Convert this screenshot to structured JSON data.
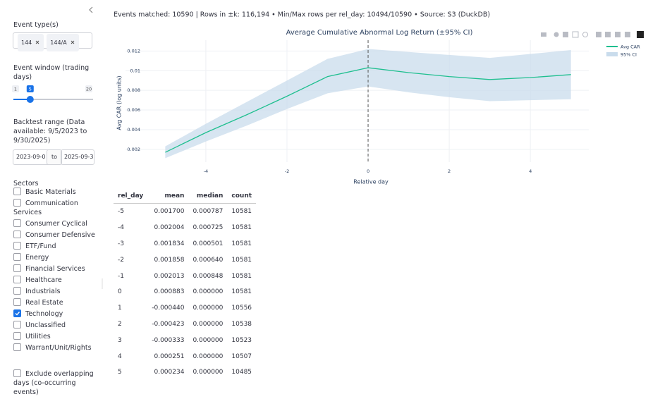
{
  "sidebar": {
    "event_types_label": "Event type(s)",
    "event_types": [
      "144",
      "144/A"
    ],
    "window_label": "Event window (trading days)",
    "slider": {
      "min": 1,
      "value": 5,
      "max": 20
    },
    "range_label": "Backtest range (Data available: 9/5/2023 to 9/30/2025)",
    "date_start": "2023-09-0",
    "date_sep": "to",
    "date_end": "2025-09-3",
    "sectors_label": "Sectors",
    "sectors": [
      {
        "name": "Basic Materials",
        "checked": false
      },
      {
        "name": "Communication Services",
        "checked": false
      },
      {
        "name": "Consumer Cyclical",
        "checked": false
      },
      {
        "name": "Consumer Defensive",
        "checked": false
      },
      {
        "name": "ETF/Fund",
        "checked": false
      },
      {
        "name": "Energy",
        "checked": false
      },
      {
        "name": "Financial Services",
        "checked": false
      },
      {
        "name": "Healthcare",
        "checked": false
      },
      {
        "name": "Industrials",
        "checked": false
      },
      {
        "name": "Real Estate",
        "checked": false
      },
      {
        "name": "Technology",
        "checked": true
      },
      {
        "name": "Unclassified",
        "checked": false
      },
      {
        "name": "Utilities",
        "checked": false
      },
      {
        "name": "Warrant/Unit/Rights",
        "checked": false
      }
    ],
    "exclude": {
      "name": "Exclude overlapping days (co-occurring events)",
      "checked": false
    }
  },
  "header": {
    "summary": "Events matched: 10590 | Rows in ±k: 116,194 • Min/Max rows per rel_day: 10494/10590 • Source: S3 (DuckDB)"
  },
  "chart_data": {
    "type": "line",
    "title": "Average Cumulative Abnormal Log Return (±95% CI)",
    "x_label": "Relative day",
    "y_label": "Avg CAR (log units)",
    "x": [
      -5,
      -4,
      -3,
      -2,
      -1,
      0,
      1,
      2,
      3,
      4,
      5
    ],
    "series": [
      {
        "name": "Avg CAR",
        "color": "#1fbf8f",
        "values": [
          0.0017,
          0.0037,
          0.0055,
          0.0074,
          0.0094,
          0.0103,
          0.0098,
          0.0094,
          0.0091,
          0.0093,
          0.0096
        ]
      },
      {
        "name": "95% CI",
        "color": "#c9dcec",
        "lower": [
          0.0011,
          0.0028,
          0.0044,
          0.0061,
          0.0077,
          0.0084,
          0.0078,
          0.0073,
          0.0069,
          0.007,
          0.0071
        ],
        "upper": [
          0.0023,
          0.0046,
          0.0068,
          0.009,
          0.0112,
          0.0122,
          0.0119,
          0.0116,
          0.0113,
          0.0117,
          0.0121
        ]
      }
    ],
    "reference_x": 0,
    "xlim": [
      -5.98,
      5.44
    ],
    "xticks": [
      -4,
      -2,
      0,
      2,
      4
    ],
    "ylim": [
      0.0007,
      0.0131
    ],
    "yticks": [
      0.002,
      0.004,
      0.006,
      0.008,
      0.01,
      0.012
    ],
    "grid": true
  },
  "table": {
    "columns": [
      "rel_day",
      "mean",
      "median",
      "count"
    ],
    "rows": [
      [
        "-5",
        "0.001700",
        "0.000787",
        "10581"
      ],
      [
        "-4",
        "0.002004",
        "0.000725",
        "10581"
      ],
      [
        "-3",
        "0.001834",
        "0.000501",
        "10581"
      ],
      [
        "-2",
        "0.001858",
        "0.000640",
        "10581"
      ],
      [
        "-1",
        "0.002013",
        "0.000848",
        "10581"
      ],
      [
        "0",
        "0.000883",
        "0.000000",
        "10581"
      ],
      [
        "1",
        "-0.000440",
        "0.000000",
        "10556"
      ],
      [
        "2",
        "-0.000423",
        "0.000000",
        "10538"
      ],
      [
        "3",
        "-0.000333",
        "0.000000",
        "10523"
      ],
      [
        "4",
        "0.000251",
        "0.000000",
        "10507"
      ],
      [
        "5",
        "0.000234",
        "0.000000",
        "10485"
      ]
    ]
  }
}
